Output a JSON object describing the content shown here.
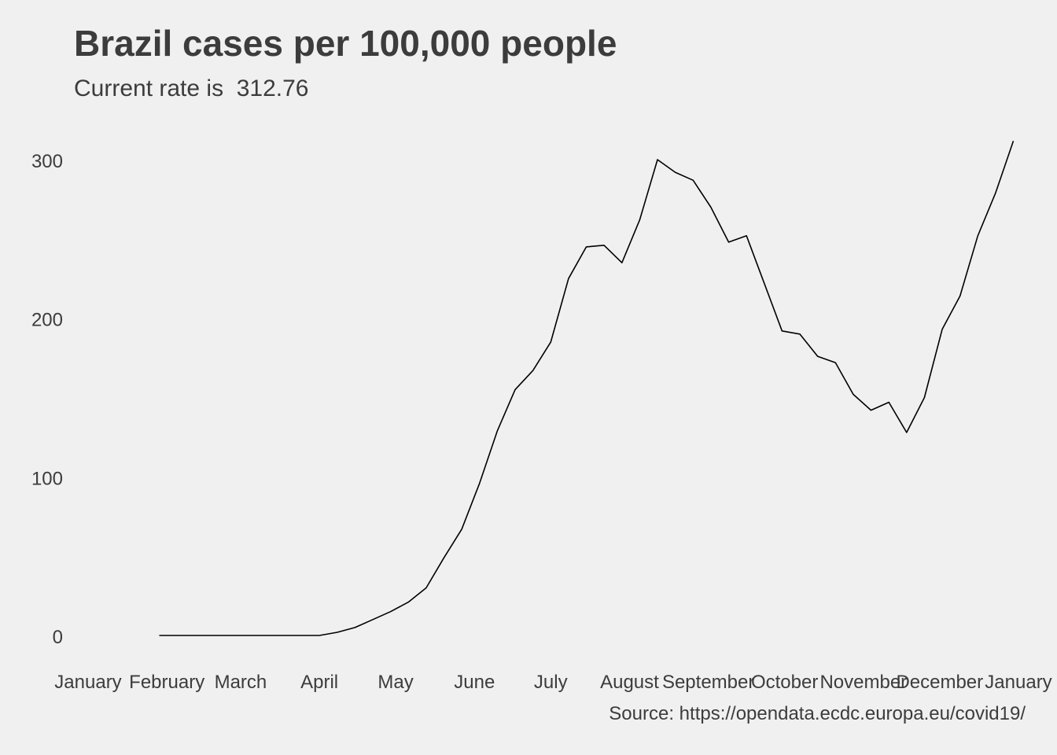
{
  "title": "Brazil cases per 100,000 people",
  "subtitle": "Current rate is  312.76",
  "caption": "Source: https://opendata.ecdc.europa.eu/covid19/",
  "colors": {
    "background": "#f0f0f0",
    "text": "#3c3c3c",
    "line": "#000000"
  },
  "chart_data": {
    "type": "line",
    "title": "Brazil cases per 100,000 people",
    "subtitle": "Current rate is  312.76",
    "xlabel": "",
    "ylabel": "",
    "x_axis": "date",
    "xlim": [
      "2020-01-01",
      "2021-01-01"
    ],
    "ylim": [
      0,
      320
    ],
    "grid": false,
    "legend": "none",
    "x_tick_labels": [
      {
        "date": "2020-01-01",
        "label": "January"
      },
      {
        "date": "2020-02-01",
        "label": "February"
      },
      {
        "date": "2020-03-01",
        "label": "March"
      },
      {
        "date": "2020-04-01",
        "label": "April"
      },
      {
        "date": "2020-05-01",
        "label": "May"
      },
      {
        "date": "2020-06-01",
        "label": "June"
      },
      {
        "date": "2020-07-01",
        "label": "July"
      },
      {
        "date": "2020-08-01",
        "label": "August"
      },
      {
        "date": "2020-09-01",
        "label": "September"
      },
      {
        "date": "2020-10-01",
        "label": "October"
      },
      {
        "date": "2020-11-01",
        "label": "November"
      },
      {
        "date": "2020-12-01",
        "label": "December"
      },
      {
        "date": "2021-01-01",
        "label": "January"
      }
    ],
    "y_ticks": [
      0,
      100,
      200,
      300
    ],
    "series": [
      {
        "x": [
          "2020-01-29",
          "2020-02-05",
          "2020-02-12",
          "2020-02-19",
          "2020-02-26",
          "2020-03-04",
          "2020-03-11",
          "2020-03-18",
          "2020-03-25",
          "2020-04-01",
          "2020-04-08",
          "2020-04-15",
          "2020-04-22",
          "2020-04-29",
          "2020-05-06",
          "2020-05-13",
          "2020-05-20",
          "2020-05-27",
          "2020-06-03",
          "2020-06-10",
          "2020-06-17",
          "2020-06-24",
          "2020-07-01",
          "2020-07-08",
          "2020-07-15",
          "2020-07-22",
          "2020-07-29",
          "2020-08-05",
          "2020-08-12",
          "2020-08-19",
          "2020-08-26",
          "2020-09-02",
          "2020-09-09",
          "2020-09-16",
          "2020-09-23",
          "2020-09-30",
          "2020-10-07",
          "2020-10-14",
          "2020-10-21",
          "2020-10-28",
          "2020-11-04",
          "2020-11-11",
          "2020-11-18",
          "2020-11-25",
          "2020-12-02",
          "2020-12-09",
          "2020-12-16",
          "2020-12-23",
          "2020-12-30"
        ],
        "y": [
          1,
          1,
          1,
          1,
          1,
          1,
          1,
          1,
          1,
          1,
          3,
          6,
          11,
          16,
          22,
          31,
          50,
          68,
          97,
          130,
          156,
          168,
          186,
          226,
          246,
          247,
          236,
          263,
          301,
          293,
          288,
          271,
          249,
          253,
          223,
          193,
          191,
          177,
          173,
          153,
          143,
          148,
          129,
          151,
          194,
          215,
          253,
          280,
          312.76
        ]
      }
    ]
  }
}
